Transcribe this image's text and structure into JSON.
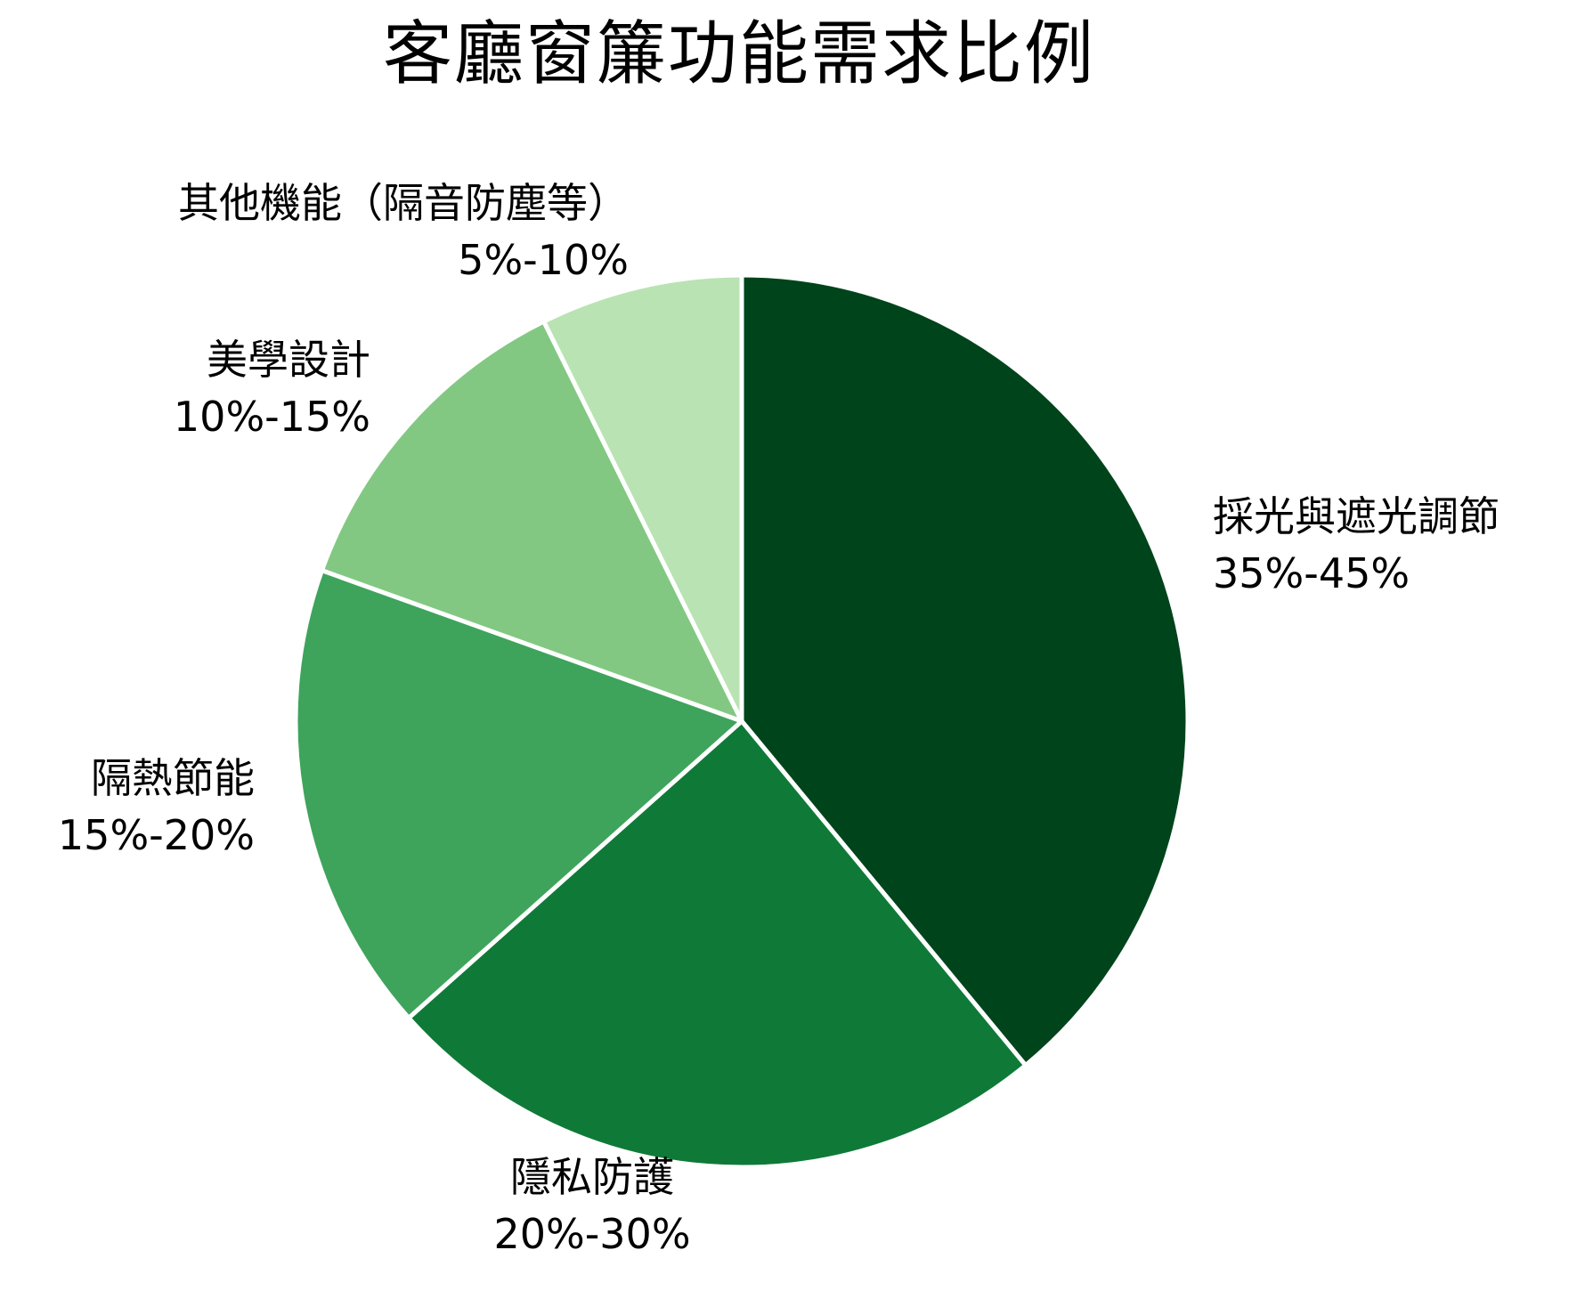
{
  "chart_data": {
    "type": "pie",
    "title": "客廳窗簾功能需求比例",
    "start_angle": "90 (top), clockwise",
    "categories": [
      "採光與遮光調節",
      "隱私防護",
      "隔熱節能",
      "美學設計",
      "其他機能（隔音防塵等）"
    ],
    "ranges": [
      "35%-45%",
      "20%-30%",
      "15%-20%",
      "10%-15%",
      "5%-10%"
    ],
    "values": [
      40,
      25,
      17.5,
      12.5,
      7.5
    ],
    "colors": [
      "#00441b",
      "#0f7a37",
      "#3ea45b",
      "#82c882",
      "#b9e3b3"
    ],
    "legend": "none (direct labels)",
    "wedge_edge_color": "#ffffff"
  },
  "title": "客廳窗簾功能需求比例",
  "labels": [
    {
      "name": "採光與遮光調節",
      "range": "35%-45%"
    },
    {
      "name": "隱私防護",
      "range": "20%-30%"
    },
    {
      "name": "隔熱節能",
      "range": "15%-20%"
    },
    {
      "name": "美學設計",
      "range": "10%-15%"
    },
    {
      "name": "其他機能（隔音防塵等）",
      "range": "5%-10%"
    }
  ]
}
